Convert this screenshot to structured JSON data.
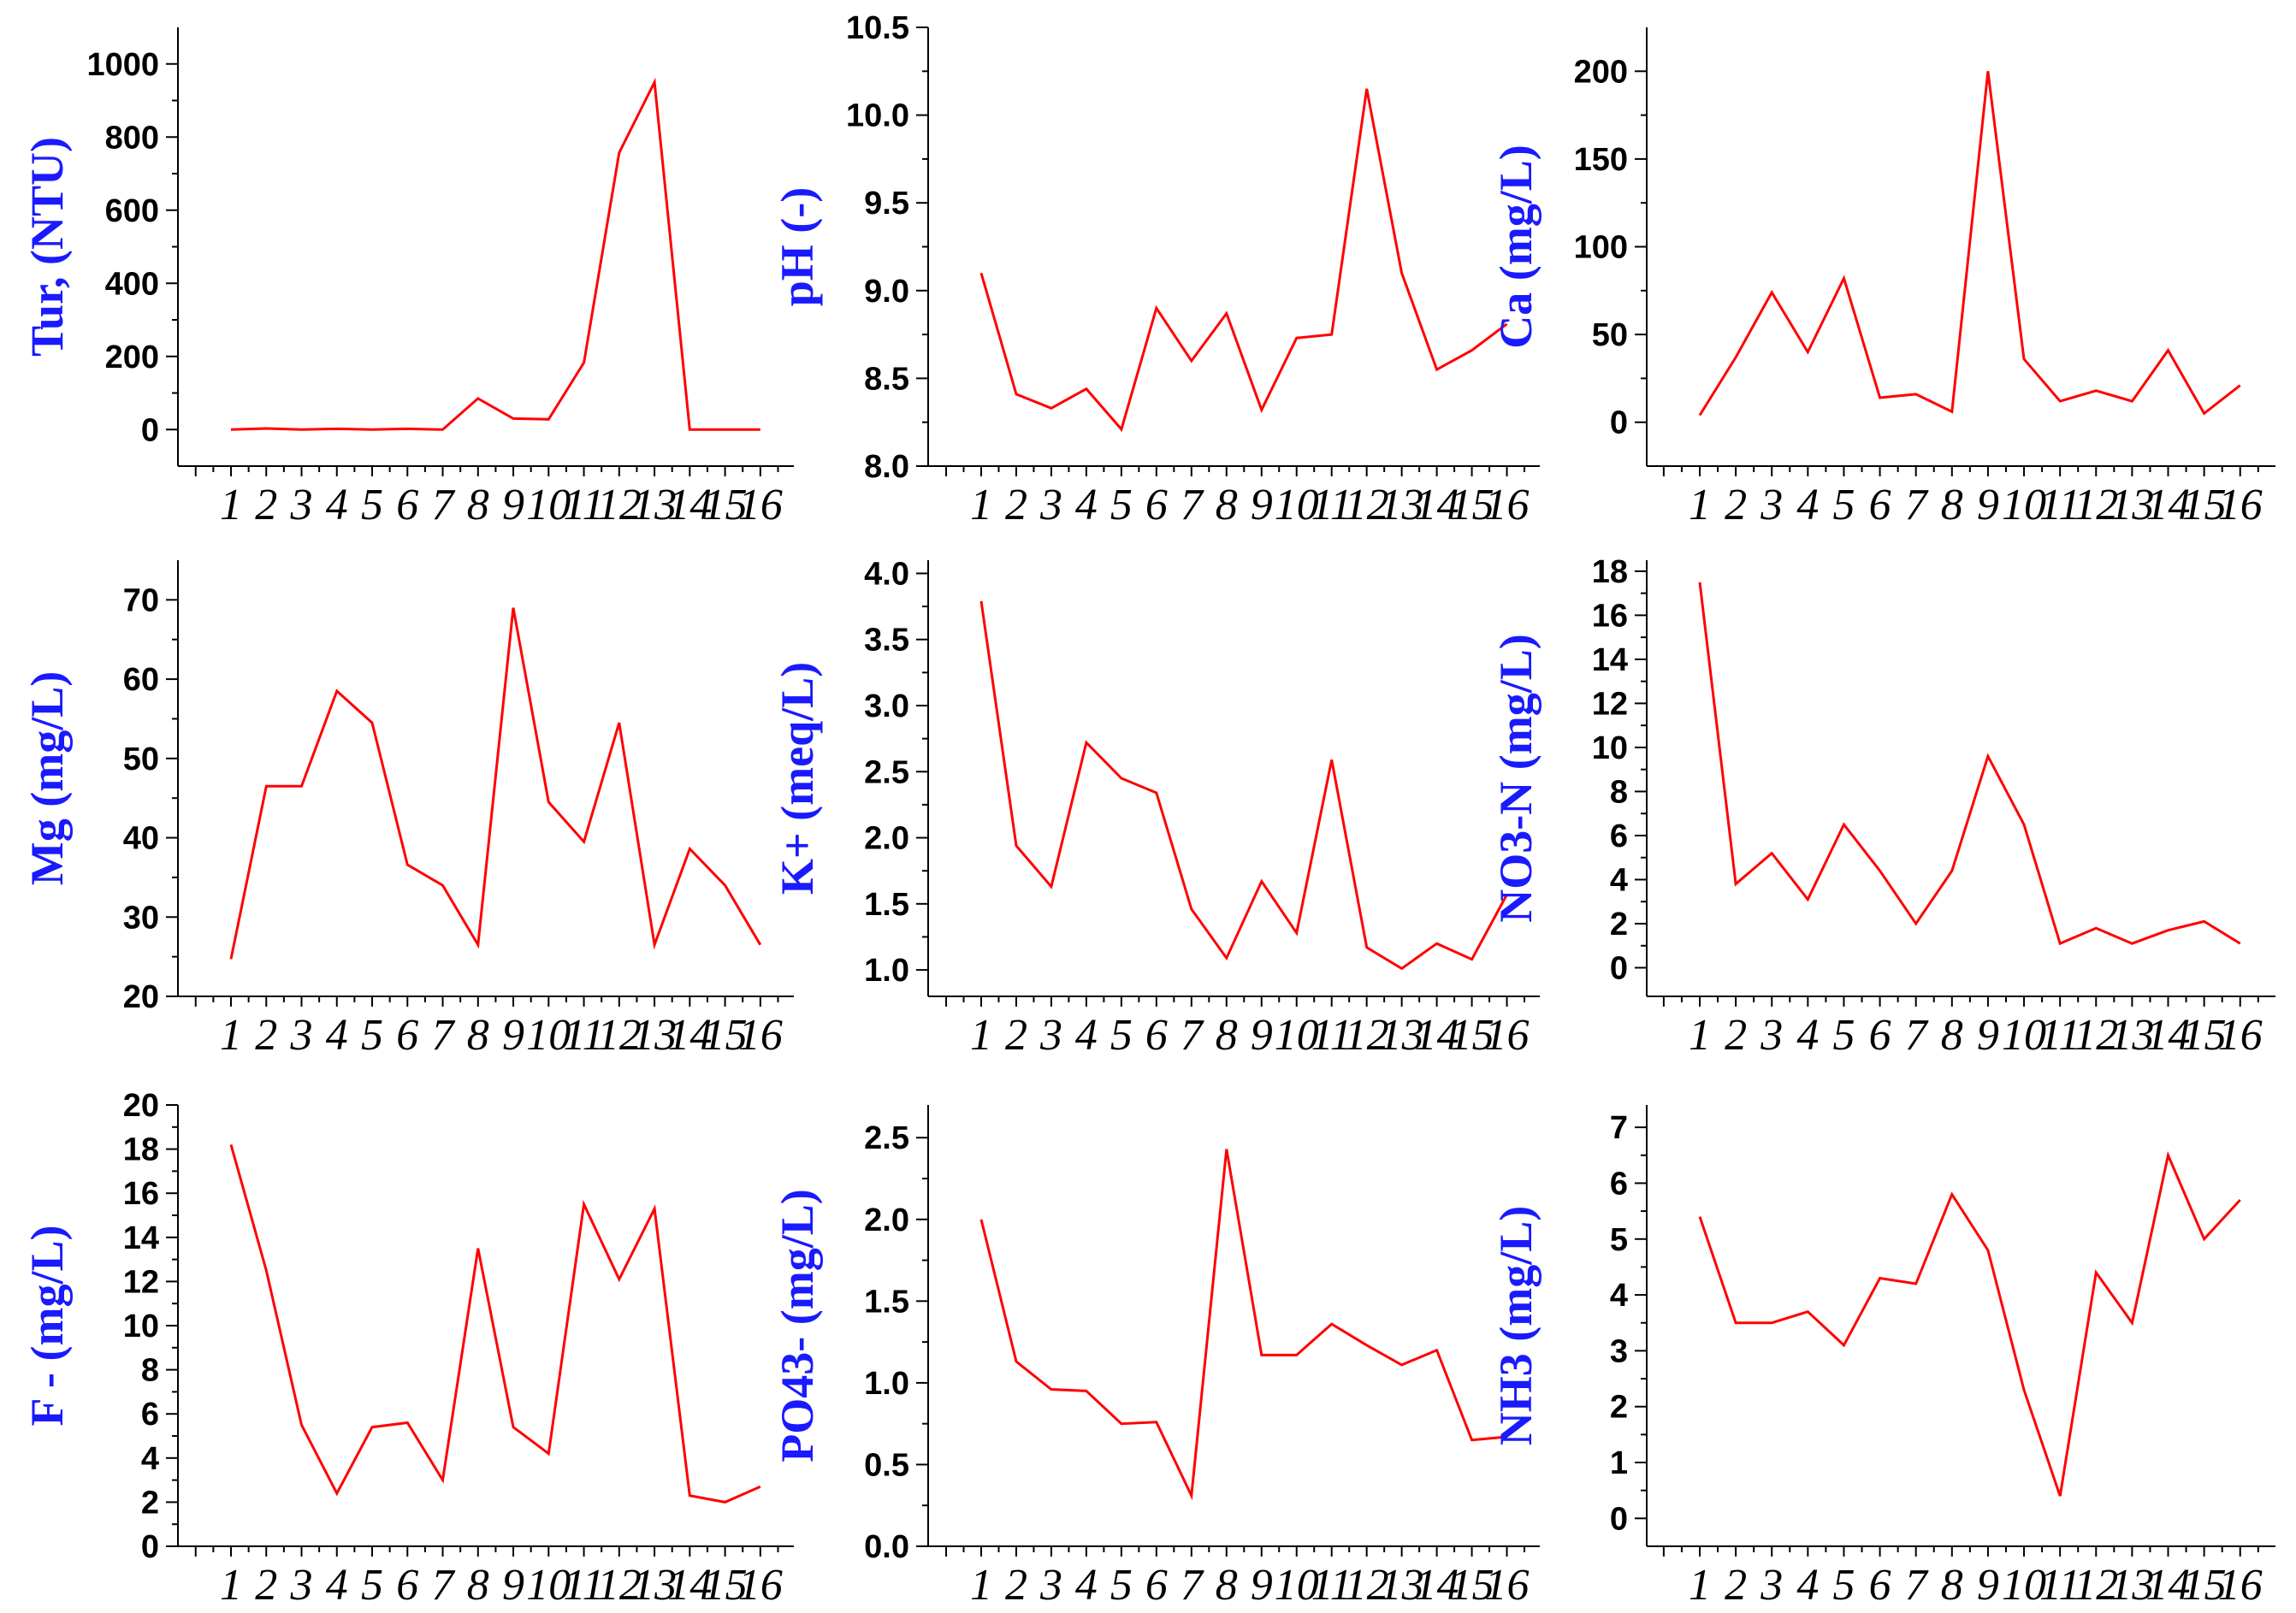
{
  "colors": {
    "series": "#ff0000",
    "axis_title": "#1a1aff",
    "axis": "#000000"
  },
  "chart_data": [
    {
      "type": "line",
      "ylabel": "Tur, (NTU)",
      "categories": [
        "1",
        "2",
        "3",
        "4",
        "5",
        "6",
        "7",
        "8",
        "9",
        "10",
        "11",
        "12",
        "13",
        "14",
        "15",
        "16"
      ],
      "series": [
        {
          "values": [
            0,
            3,
            0,
            2,
            0,
            2,
            0,
            85,
            30,
            28,
            183,
            757,
            950,
            0,
            0,
            0
          ]
        }
      ],
      "ylim": [
        -100,
        1100
      ],
      "yticks": [
        0,
        200,
        400,
        600,
        800,
        1000
      ],
      "ytick_labels": [
        "0",
        "200",
        "400",
        "600",
        "800",
        "1000"
      ]
    },
    {
      "type": "line",
      "ylabel": "pH (-)",
      "categories": [
        "1",
        "2",
        "3",
        "4",
        "5",
        "6",
        "7",
        "8",
        "9",
        "10",
        "11",
        "12",
        "13",
        "14",
        "15",
        "16"
      ],
      "series": [
        {
          "values": [
            9.1,
            8.41,
            8.33,
            8.44,
            8.21,
            8.9,
            8.6,
            8.87,
            8.32,
            8.73,
            8.75,
            10.15,
            9.1,
            8.55,
            8.66,
            8.81
          ]
        }
      ],
      "ylim": [
        8.0,
        10.5
      ],
      "yticks": [
        8.0,
        8.5,
        9.0,
        9.5,
        10.0,
        10.5
      ],
      "ytick_labels": [
        "8.0",
        "8.5",
        "9.0",
        "9.5",
        "10.0",
        "10.5"
      ]
    },
    {
      "type": "line",
      "ylabel": "Ca (mg/L)",
      "categories": [
        "1",
        "2",
        "3",
        "4",
        "5",
        "6",
        "7",
        "8",
        "9",
        "10",
        "11",
        "12",
        "13",
        "14",
        "15",
        "16"
      ],
      "series": [
        {
          "values": [
            4,
            37,
            74,
            40,
            82,
            14,
            16,
            6,
            200,
            36,
            12,
            18,
            12,
            41,
            5,
            21
          ]
        }
      ],
      "ylim": [
        -25,
        225
      ],
      "yticks": [
        0,
        50,
        100,
        150,
        200
      ],
      "ytick_labels": [
        "0",
        "50",
        "100",
        "150",
        "200"
      ]
    },
    {
      "type": "line",
      "ylabel": "Mg (mg/L)",
      "categories": [
        "1",
        "2",
        "3",
        "4",
        "5",
        "6",
        "7",
        "8",
        "9",
        "10",
        "11",
        "12",
        "13",
        "14",
        "15",
        "16"
      ],
      "series": [
        {
          "values": [
            24.7,
            46.5,
            46.5,
            58.5,
            54.5,
            36.6,
            34,
            26.5,
            69,
            44.5,
            39.5,
            54.5,
            26.5,
            38.6,
            34,
            26.5
          ]
        }
      ],
      "ylim": [
        20,
        75
      ],
      "yticks": [
        20,
        30,
        40,
        50,
        60,
        70
      ],
      "ytick_labels": [
        "20",
        "30",
        "40",
        "50",
        "60",
        "70"
      ]
    },
    {
      "type": "line",
      "ylabel": "K+ (meq/L)",
      "categories": [
        "1",
        "2",
        "3",
        "4",
        "5",
        "6",
        "7",
        "8",
        "9",
        "10",
        "11",
        "12",
        "13",
        "14",
        "15",
        "16"
      ],
      "series": [
        {
          "values": [
            3.79,
            1.94,
            1.63,
            2.72,
            2.45,
            2.34,
            1.46,
            1.09,
            1.67,
            1.28,
            2.59,
            1.17,
            1.01,
            1.2,
            1.08,
            1.57
          ]
        }
      ],
      "ylim": [
        0.8,
        4.1
      ],
      "yticks": [
        1.0,
        1.5,
        2.0,
        2.5,
        3.0,
        3.5,
        4.0
      ],
      "ytick_labels": [
        "1.0",
        "1.5",
        "2.0",
        "2.5",
        "3.0",
        "3.5",
        "4.0"
      ]
    },
    {
      "type": "line",
      "ylabel": "NO3-N (mg/L)",
      "categories": [
        "1",
        "2",
        "3",
        "4",
        "5",
        "6",
        "7",
        "8",
        "9",
        "10",
        "11",
        "12",
        "13",
        "14",
        "15",
        "16"
      ],
      "series": [
        {
          "values": [
            17.5,
            3.8,
            5.2,
            3.1,
            6.5,
            4.4,
            2,
            4.4,
            9.6,
            6.5,
            1.1,
            1.8,
            1.1,
            1.7,
            2.1,
            1.1
          ]
        }
      ],
      "ylim": [
        -1.3,
        18.5
      ],
      "yticks": [
        0,
        2,
        4,
        6,
        8,
        10,
        12,
        14,
        16,
        18
      ],
      "ytick_labels": [
        "0",
        "2",
        "4",
        "6",
        "8",
        "10",
        "12",
        "14",
        "16",
        "18"
      ]
    },
    {
      "type": "line",
      "ylabel": "F - (mg/L)",
      "categories": [
        "1",
        "2",
        "3",
        "4",
        "5",
        "6",
        "7",
        "8",
        "9",
        "10",
        "11",
        "12",
        "13",
        "14",
        "15",
        "16"
      ],
      "series": [
        {
          "values": [
            18.2,
            12.5,
            5.5,
            2.4,
            5.4,
            5.6,
            3.0,
            13.5,
            5.4,
            4.2,
            15.5,
            12.1,
            15.3,
            2.3,
            2.0,
            2.7
          ]
        }
      ],
      "ylim": [
        0,
        20
      ],
      "yticks": [
        0,
        2,
        4,
        6,
        8,
        10,
        12,
        14,
        16,
        18,
        20
      ],
      "ytick_labels": [
        "0",
        "2",
        "4",
        "6",
        "8",
        "10",
        "12",
        "14",
        "16",
        "18",
        "20"
      ]
    },
    {
      "type": "line",
      "ylabel": "PO43- (mg/L)",
      "categories": [
        "1",
        "2",
        "3",
        "4",
        "5",
        "6",
        "7",
        "8",
        "9",
        "10",
        "11",
        "12",
        "13",
        "14",
        "15",
        "16"
      ],
      "series": [
        {
          "values": [
            2.0,
            1.13,
            0.96,
            0.95,
            0.75,
            0.76,
            0.31,
            2.43,
            1.17,
            1.17,
            1.36,
            1.23,
            1.11,
            1.2,
            0.65,
            0.67
          ]
        }
      ],
      "ylim": [
        0,
        2.7
      ],
      "yticks": [
        0.0,
        0.5,
        1.0,
        1.5,
        2.0,
        2.5
      ],
      "ytick_labels": [
        "0.0",
        "0.5",
        "1.0",
        "1.5",
        "2.0",
        "2.5"
      ]
    },
    {
      "type": "line",
      "ylabel": "NH3 (mg/L)",
      "categories": [
        "1",
        "2",
        "3",
        "4",
        "5",
        "6",
        "7",
        "8",
        "9",
        "10",
        "11",
        "12",
        "13",
        "14",
        "15",
        "16"
      ],
      "series": [
        {
          "values": [
            5.4,
            3.5,
            3.5,
            3.7,
            3.1,
            4.3,
            4.2,
            5.8,
            4.8,
            2.3,
            0.4,
            4.4,
            3.5,
            6.5,
            5.0,
            5.7
          ]
        }
      ],
      "ylim": [
        -0.5,
        7.4
      ],
      "yticks": [
        0,
        1,
        2,
        3,
        4,
        5,
        6,
        7
      ],
      "ytick_labels": [
        "0",
        "1",
        "2",
        "3",
        "4",
        "5",
        "6",
        "7"
      ]
    }
  ]
}
